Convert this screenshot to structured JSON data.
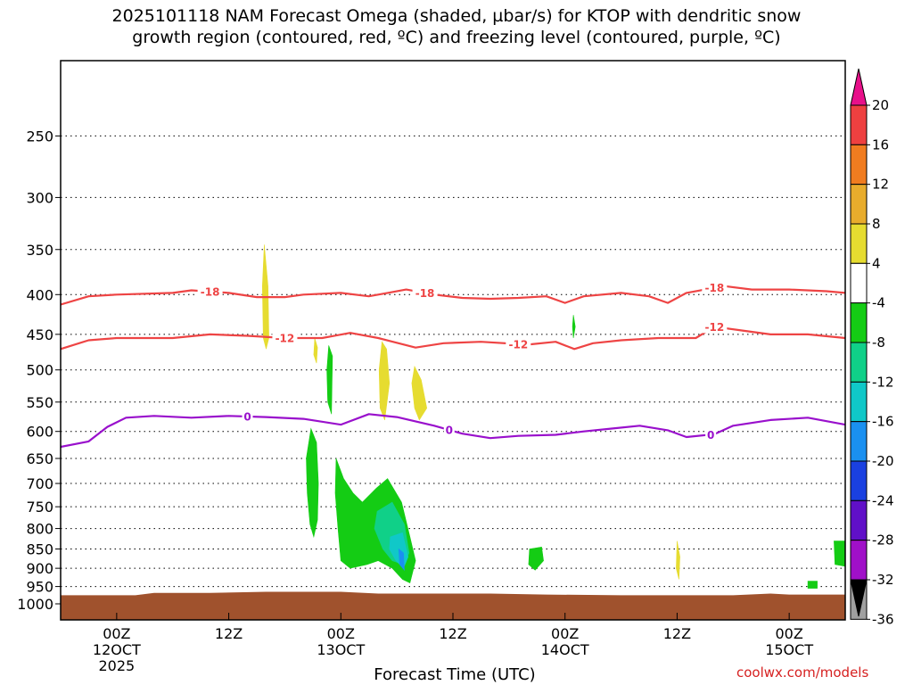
{
  "title": "2025101118 NAM Forecast Omega (shaded, µbar/s) for KTOP with dendritic snow\ngrowth region (contoured, red, ºC) and freezing level (contoured, purple, ºC)",
  "credit": "coolwx.com/models",
  "chart_data": {
    "type": "time-height",
    "xlabel": "Forecast Time (UTC)",
    "x_ticks": [
      {
        "hour": 6,
        "lines": [
          "00Z",
          "12OCT",
          "2025"
        ]
      },
      {
        "hour": 18,
        "lines": [
          "12Z"
        ]
      },
      {
        "hour": 30,
        "lines": [
          "00Z",
          "13OCT"
        ]
      },
      {
        "hour": 42,
        "lines": [
          "12Z"
        ]
      },
      {
        "hour": 54,
        "lines": [
          "00Z",
          "14OCT"
        ]
      },
      {
        "hour": 66,
        "lines": [
          "12Z"
        ]
      },
      {
        "hour": 78,
        "lines": [
          "00Z",
          "15OCT"
        ]
      }
    ],
    "x_range_hours": [
      0,
      84
    ],
    "y_ticks": [
      250,
      300,
      350,
      400,
      450,
      500,
      550,
      600,
      650,
      700,
      750,
      800,
      850,
      900,
      950,
      1000
    ],
    "y_range_hPa": [
      1000,
      200
    ],
    "y_scale": "log",
    "grid": true,
    "colorbar": {
      "labels": [
        "20",
        "16",
        "12",
        "8",
        "4",
        "-4",
        "-8",
        "-12",
        "-16",
        "-20",
        "-24",
        "-28",
        "-32",
        "-36"
      ],
      "colors": [
        "#e8108a",
        "#ee4040",
        "#f07c20",
        "#e8ac2c",
        "#e6dc30",
        "#ffffff",
        "#14cc14",
        "#10d088",
        "#10c8c8",
        "#1a90f0",
        "#1a40e0",
        "#6010c8",
        "#a010c8",
        "#a0a0a0",
        "#000000"
      ]
    },
    "contours": [
      {
        "name": "-18",
        "color": "#ee4444",
        "points": [
          [
            0,
            412
          ],
          [
            3,
            402
          ],
          [
            6,
            400
          ],
          [
            12,
            398
          ],
          [
            14,
            395
          ],
          [
            18,
            398
          ],
          [
            21,
            403
          ],
          [
            24,
            403
          ],
          [
            26,
            400
          ],
          [
            30,
            398
          ],
          [
            33,
            402
          ],
          [
            35,
            398
          ],
          [
            37,
            394
          ],
          [
            40,
            400
          ],
          [
            43,
            404
          ],
          [
            46,
            405
          ],
          [
            49,
            404
          ],
          [
            52,
            402
          ],
          [
            54,
            410
          ],
          [
            56,
            402
          ],
          [
            60,
            398
          ],
          [
            63,
            402
          ],
          [
            65,
            410
          ],
          [
            67,
            398
          ],
          [
            71,
            390
          ],
          [
            74,
            394
          ],
          [
            78,
            394
          ],
          [
            82,
            396
          ],
          [
            84,
            398
          ]
        ],
        "labels": [
          {
            "x": 16,
            "text": "-18"
          },
          {
            "x": 39,
            "text": "-18"
          },
          {
            "x": 70,
            "text": "-18"
          }
        ]
      },
      {
        "name": "-12",
        "color": "#ee4444",
        "points": [
          [
            0,
            470
          ],
          [
            3,
            458
          ],
          [
            6,
            455
          ],
          [
            12,
            455
          ],
          [
            16,
            450
          ],
          [
            20,
            452
          ],
          [
            24,
            455
          ],
          [
            28,
            455
          ],
          [
            31,
            448
          ],
          [
            34,
            455
          ],
          [
            38,
            468
          ],
          [
            41,
            462
          ],
          [
            45,
            460
          ],
          [
            50,
            464
          ],
          [
            53,
            460
          ],
          [
            55,
            470
          ],
          [
            57,
            462
          ],
          [
            60,
            458
          ],
          [
            64,
            455
          ],
          [
            68,
            455
          ],
          [
            70,
            440
          ],
          [
            73,
            445
          ],
          [
            76,
            450
          ],
          [
            80,
            450
          ],
          [
            84,
            455
          ]
        ],
        "labels": [
          {
            "x": 24,
            "text": "-12"
          },
          {
            "x": 49,
            "text": "-12"
          },
          {
            "x": 70,
            "text": "-12"
          }
        ]
      },
      {
        "name": "0",
        "color": "#9910cc",
        "points": [
          [
            0,
            628
          ],
          [
            3,
            618
          ],
          [
            5,
            592
          ],
          [
            7,
            576
          ],
          [
            10,
            573
          ],
          [
            14,
            576
          ],
          [
            18,
            573
          ],
          [
            22,
            575
          ],
          [
            26,
            578
          ],
          [
            30,
            588
          ],
          [
            33,
            570
          ],
          [
            36,
            575
          ],
          [
            40,
            590
          ],
          [
            43,
            604
          ],
          [
            46,
            612
          ],
          [
            49,
            608
          ],
          [
            53,
            606
          ],
          [
            56,
            600
          ],
          [
            59,
            595
          ],
          [
            62,
            590
          ],
          [
            65,
            598
          ],
          [
            67,
            610
          ],
          [
            70,
            605
          ],
          [
            72,
            590
          ],
          [
            76,
            580
          ],
          [
            80,
            576
          ],
          [
            84,
            588
          ]
        ],
        "labels": [
          {
            "x": 20,
            "text": "0"
          },
          {
            "x": 41.6,
            "text": "0"
          },
          {
            "x": 69.6,
            "text": "0"
          }
        ]
      }
    ],
    "shaded_regions": [
      {
        "level": "4..8",
        "color": "#e6dc30",
        "points": [
          [
            21.8,
            345
          ],
          [
            22.2,
            390
          ],
          [
            22.3,
            455
          ],
          [
            22,
            470
          ],
          [
            21.7,
            455
          ],
          [
            21.6,
            390
          ]
        ]
      },
      {
        "level": "4..8",
        "color": "#e6dc30",
        "points": [
          [
            27.2,
            455
          ],
          [
            27.5,
            468
          ],
          [
            27.4,
            490
          ],
          [
            27.1,
            478
          ]
        ]
      },
      {
        "level": "4..8",
        "color": "#e6dc30",
        "points": [
          [
            34.4,
            460
          ],
          [
            34.9,
            470
          ],
          [
            35.2,
            520
          ],
          [
            34.7,
            580
          ],
          [
            34.2,
            560
          ],
          [
            34.1,
            500
          ]
        ]
      },
      {
        "level": "4..8",
        "color": "#e6dc30",
        "points": [
          [
            37.9,
            495
          ],
          [
            38.6,
            515
          ],
          [
            39.2,
            560
          ],
          [
            38.4,
            580
          ],
          [
            37.9,
            560
          ],
          [
            37.6,
            520
          ]
        ]
      },
      {
        "level": "4..8",
        "color": "#e6dc30",
        "points": [
          [
            66,
            830
          ],
          [
            66.3,
            870
          ],
          [
            66.2,
            930
          ],
          [
            65.9,
            900
          ]
        ]
      },
      {
        "level": "-4..-8",
        "color": "#14cc14",
        "points": [
          [
            54.9,
            425
          ],
          [
            55.1,
            440
          ],
          [
            54.9,
            455
          ],
          [
            54.8,
            440
          ]
        ]
      },
      {
        "level": "-4..-8",
        "color": "#14cc14",
        "points": [
          [
            28.7,
            465
          ],
          [
            29.1,
            480
          ],
          [
            29,
            570
          ],
          [
            28.6,
            550
          ],
          [
            28.5,
            500
          ]
        ]
      },
      {
        "level": "-4..-8",
        "color": "#14cc14",
        "points": [
          [
            26.8,
            595
          ],
          [
            27.4,
            620
          ],
          [
            27.6,
            700
          ],
          [
            27.5,
            780
          ],
          [
            27.1,
            820
          ],
          [
            26.7,
            790
          ],
          [
            26.4,
            720
          ],
          [
            26.3,
            650
          ]
        ]
      },
      {
        "level": "-4..-8",
        "color": "#14cc14",
        "points": [
          [
            29.5,
            650
          ],
          [
            30.3,
            690
          ],
          [
            31.3,
            720
          ],
          [
            32.3,
            740
          ],
          [
            33.8,
            710
          ],
          [
            35,
            690
          ],
          [
            36.5,
            740
          ],
          [
            37.4,
            820
          ],
          [
            38,
            880
          ],
          [
            37.4,
            940
          ],
          [
            36.6,
            930
          ],
          [
            35.5,
            900
          ],
          [
            34,
            880
          ],
          [
            32.8,
            890
          ],
          [
            31,
            900
          ],
          [
            30,
            880
          ],
          [
            29.7,
            800
          ],
          [
            29.4,
            720
          ]
        ]
      },
      {
        "level": "-8..-12",
        "color": "#10d088",
        "points": [
          [
            33.9,
            760
          ],
          [
            35.5,
            740
          ],
          [
            36.8,
            790
          ],
          [
            37.3,
            860
          ],
          [
            36.7,
            890
          ],
          [
            35.5,
            880
          ],
          [
            34.5,
            850
          ],
          [
            33.6,
            800
          ]
        ]
      },
      {
        "level": "-12..-16",
        "color": "#10c8c8",
        "points": [
          [
            35.3,
            820
          ],
          [
            36.6,
            810
          ],
          [
            37.2,
            870
          ],
          [
            36.7,
            900
          ],
          [
            35.9,
            880
          ],
          [
            35.2,
            850
          ]
        ]
      },
      {
        "level": "-16..-20",
        "color": "#1a90f0",
        "points": [
          [
            36.2,
            850
          ],
          [
            36.7,
            860
          ],
          [
            36.8,
            905
          ],
          [
            36.3,
            890
          ]
        ]
      },
      {
        "level": "-4..-8",
        "color": "#14cc14",
        "points": [
          [
            50.2,
            850
          ],
          [
            51.5,
            845
          ],
          [
            51.7,
            880
          ],
          [
            50.8,
            905
          ],
          [
            50.1,
            890
          ]
        ]
      },
      {
        "level": "-4..-8",
        "color": "#14cc14",
        "points": [
          [
            82.8,
            830
          ],
          [
            84,
            830
          ],
          [
            84,
            895
          ],
          [
            82.9,
            890
          ]
        ]
      },
      {
        "level": "-4..-8",
        "color": "#14cc14",
        "points": [
          [
            80,
            935
          ],
          [
            81,
            935
          ],
          [
            81,
            955
          ],
          [
            80,
            955
          ]
        ]
      }
    ],
    "terrain": {
      "color": "#a0522d",
      "points": [
        [
          0,
          975
        ],
        [
          8,
          975
        ],
        [
          10,
          968
        ],
        [
          16,
          968
        ],
        [
          22,
          965
        ],
        [
          30,
          965
        ],
        [
          34,
          970
        ],
        [
          46,
          970
        ],
        [
          52,
          973
        ],
        [
          60,
          975
        ],
        [
          72,
          975
        ],
        [
          76,
          970
        ],
        [
          78,
          973
        ],
        [
          84,
          973
        ]
      ]
    }
  }
}
